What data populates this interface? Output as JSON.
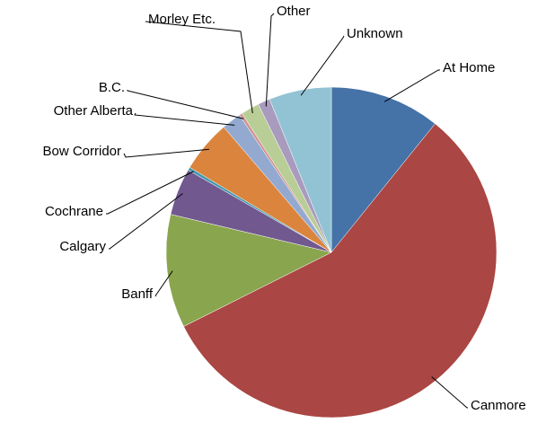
{
  "chart_data": {
    "type": "pie",
    "categories": [
      "At Home",
      "Canmore",
      "Banff",
      "Calgary",
      "Cochrane",
      "Bow Corridor",
      "Other Alberta",
      "B.C.",
      "Morley Etc.",
      "Other",
      "Unknown"
    ],
    "values": [
      10.8,
      56.8,
      11.1,
      4.6,
      0.3,
      5.1,
      1.9,
      0.3,
      1.8,
      1.2,
      6.1
    ],
    "colors": [
      "#4572a7",
      "#aa4643",
      "#89a54e",
      "#71588f",
      "#4198af",
      "#db843d",
      "#93a9cf",
      "#d19392",
      "#b9cd96",
      "#a99bbd",
      "#92c3d4"
    ]
  }
}
